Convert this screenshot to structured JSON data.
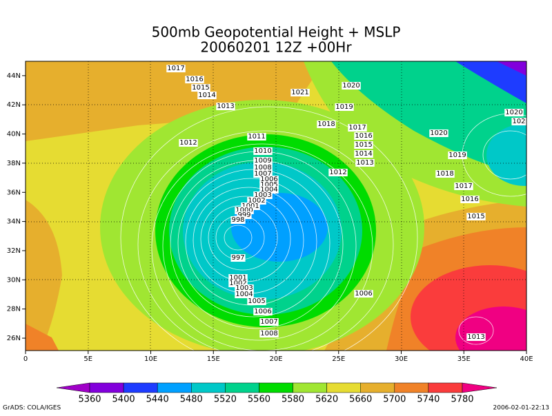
{
  "title": [
    "500mb Geopotential Height + MSLP",
    "20060201 12Z +00Hr"
  ],
  "lon_ticks": [
    "0",
    "5E",
    "10E",
    "15E",
    "20E",
    "25E",
    "30E",
    "35E",
    "40E"
  ],
  "lat_ticks": [
    "26N",
    "28N",
    "30N",
    "32N",
    "34N",
    "36N",
    "38N",
    "40N",
    "42N",
    "44N"
  ],
  "colorbar": {
    "levels": [
      5360,
      5400,
      5440,
      5480,
      5520,
      5560,
      5580,
      5620,
      5660,
      5700,
      5740,
      5780
    ],
    "colors": [
      "#a000c8",
      "#8200dc",
      "#1e3cff",
      "#00a0ff",
      "#00c8c8",
      "#00d28c",
      "#00dc00",
      "#a0e632",
      "#e6dc32",
      "#e6af2d",
      "#f08228",
      "#fa3c3c",
      "#f00082"
    ]
  },
  "isobar_labels": [
    "1017",
    "1016",
    "1015",
    "1014",
    "1013",
    "1021",
    "1020",
    "1019",
    "1018",
    "1017",
    "1016",
    "1015",
    "1014",
    "1013",
    "1012",
    "1011",
    "1010",
    "1009",
    "1008",
    "1007",
    "1006",
    "1005",
    "1004",
    "1003",
    "1002",
    "1001",
    "1000",
    "999",
    "998",
    "997",
    "1012",
    "1020",
    "1019",
    "1018",
    "1017",
    "1016",
    "1015",
    "1020",
    "102",
    "1001",
    "1002",
    "1003",
    "1004",
    "1005",
    "1006",
    "1007",
    "1008",
    "1006",
    "1013"
  ],
  "footer": {
    "left": "GrADS: COLA/IGES",
    "right": "2006-02-01-22:13"
  }
}
